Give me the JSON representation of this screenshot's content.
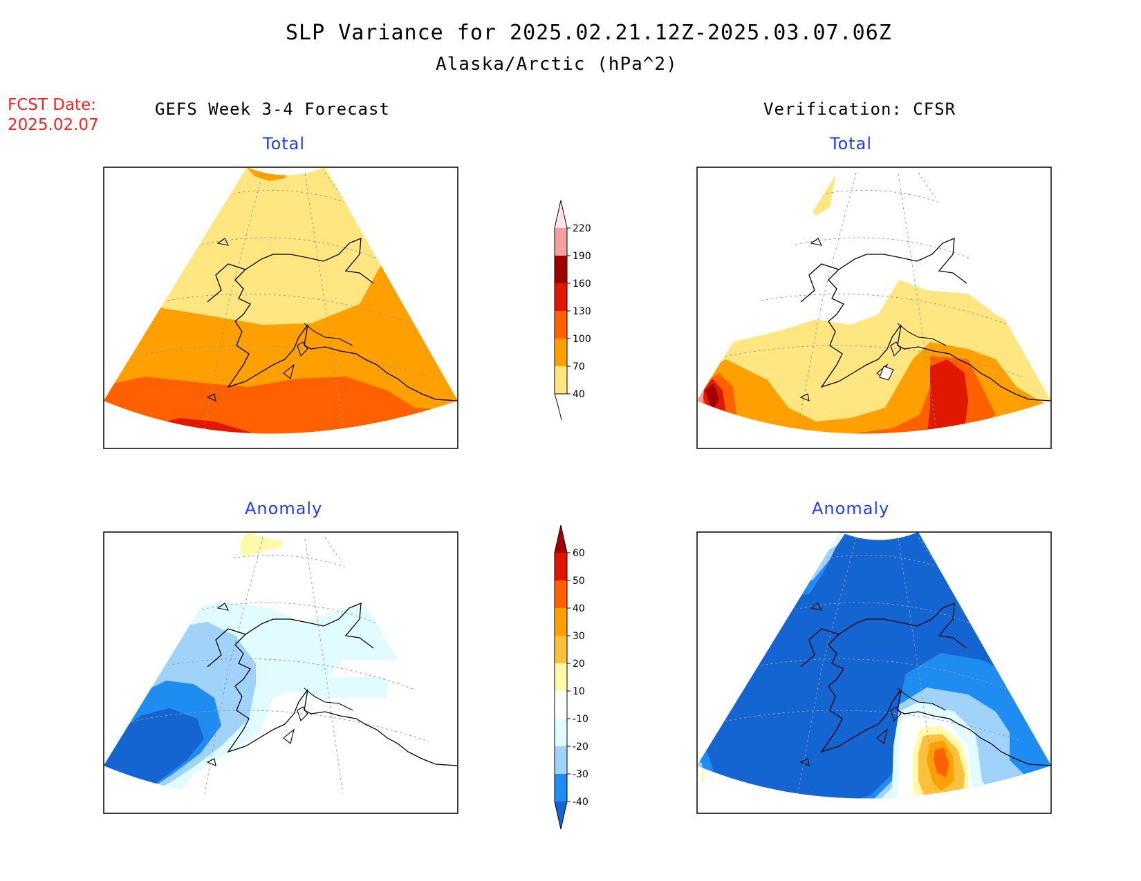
{
  "header": {
    "title": "SLP Variance for 2025.02.21.12Z-2025.03.07.06Z",
    "subtitle": "Alaska/Arctic (hPa^2)"
  },
  "fcst": {
    "label": "FCST Date:",
    "date": "2025.02.07"
  },
  "columns": {
    "left": "GEFS Week 3-4 Forecast",
    "right": "Verification: CFSR"
  },
  "panels": {
    "total_label": "Total",
    "anomaly_label": "Anomaly"
  },
  "colorbars": {
    "total": {
      "levels": [
        "40",
        "70",
        "100",
        "130",
        "160",
        "190",
        "220"
      ],
      "colors": [
        "#ffe680",
        "#ffa000",
        "#ff6000",
        "#e01800",
        "#a00000",
        "#f5a0a0",
        "#ffe4e4"
      ]
    },
    "anomaly": {
      "levels": [
        "-40",
        "-30",
        "-20",
        "-10",
        "10",
        "20",
        "30",
        "40",
        "50",
        "60"
      ],
      "colors": [
        "#1464d2",
        "#1e8cf0",
        "#a0d2fa",
        "#e0fcff",
        "#ffffff",
        "#fffaaa",
        "#ffc03c",
        "#ffa000",
        "#ff6000",
        "#e11400",
        "#a50000"
      ]
    }
  }
}
